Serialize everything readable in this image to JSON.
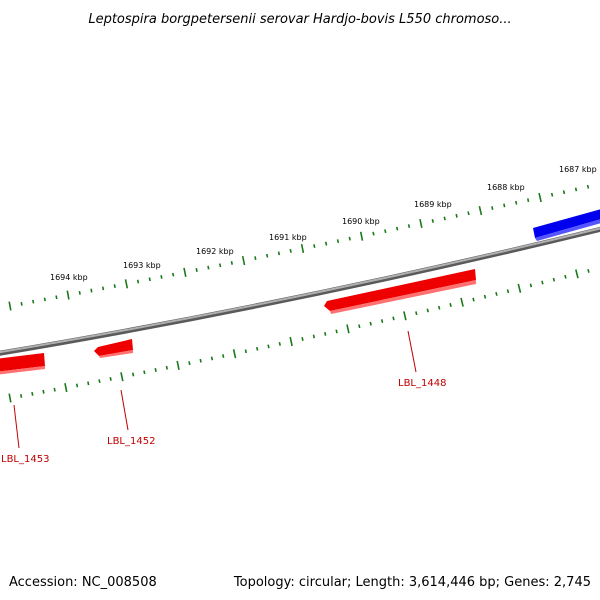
{
  "title": "Leptospira borgpetersenii serovar Hardjo-bovis L550 chromoso...",
  "footer": {
    "accession": "Accession: NC_008508",
    "summary": "Topology: circular; Length: 3,614,446 bp; Genes: 2,745"
  },
  "colors": {
    "backbone": "#8a8a8a",
    "tick": "#1a7a1a",
    "gene_forward": "#ee0000",
    "gene_reverse": "#0000ee",
    "label": "#c00000"
  },
  "scale": {
    "labels": [
      "1694 kbp",
      "1693 kbp",
      "1692 kbp",
      "1691 kbp",
      "1690 kbp",
      "1689 kbp",
      "1688 kbp",
      "1687 kbp"
    ]
  },
  "genes": [
    {
      "id": "LBL_1453",
      "strand": "forward"
    },
    {
      "id": "LBL_1452",
      "strand": "forward"
    },
    {
      "id": "LBL_1448",
      "strand": "forward"
    },
    {
      "id": "",
      "strand": "reverse"
    }
  ]
}
